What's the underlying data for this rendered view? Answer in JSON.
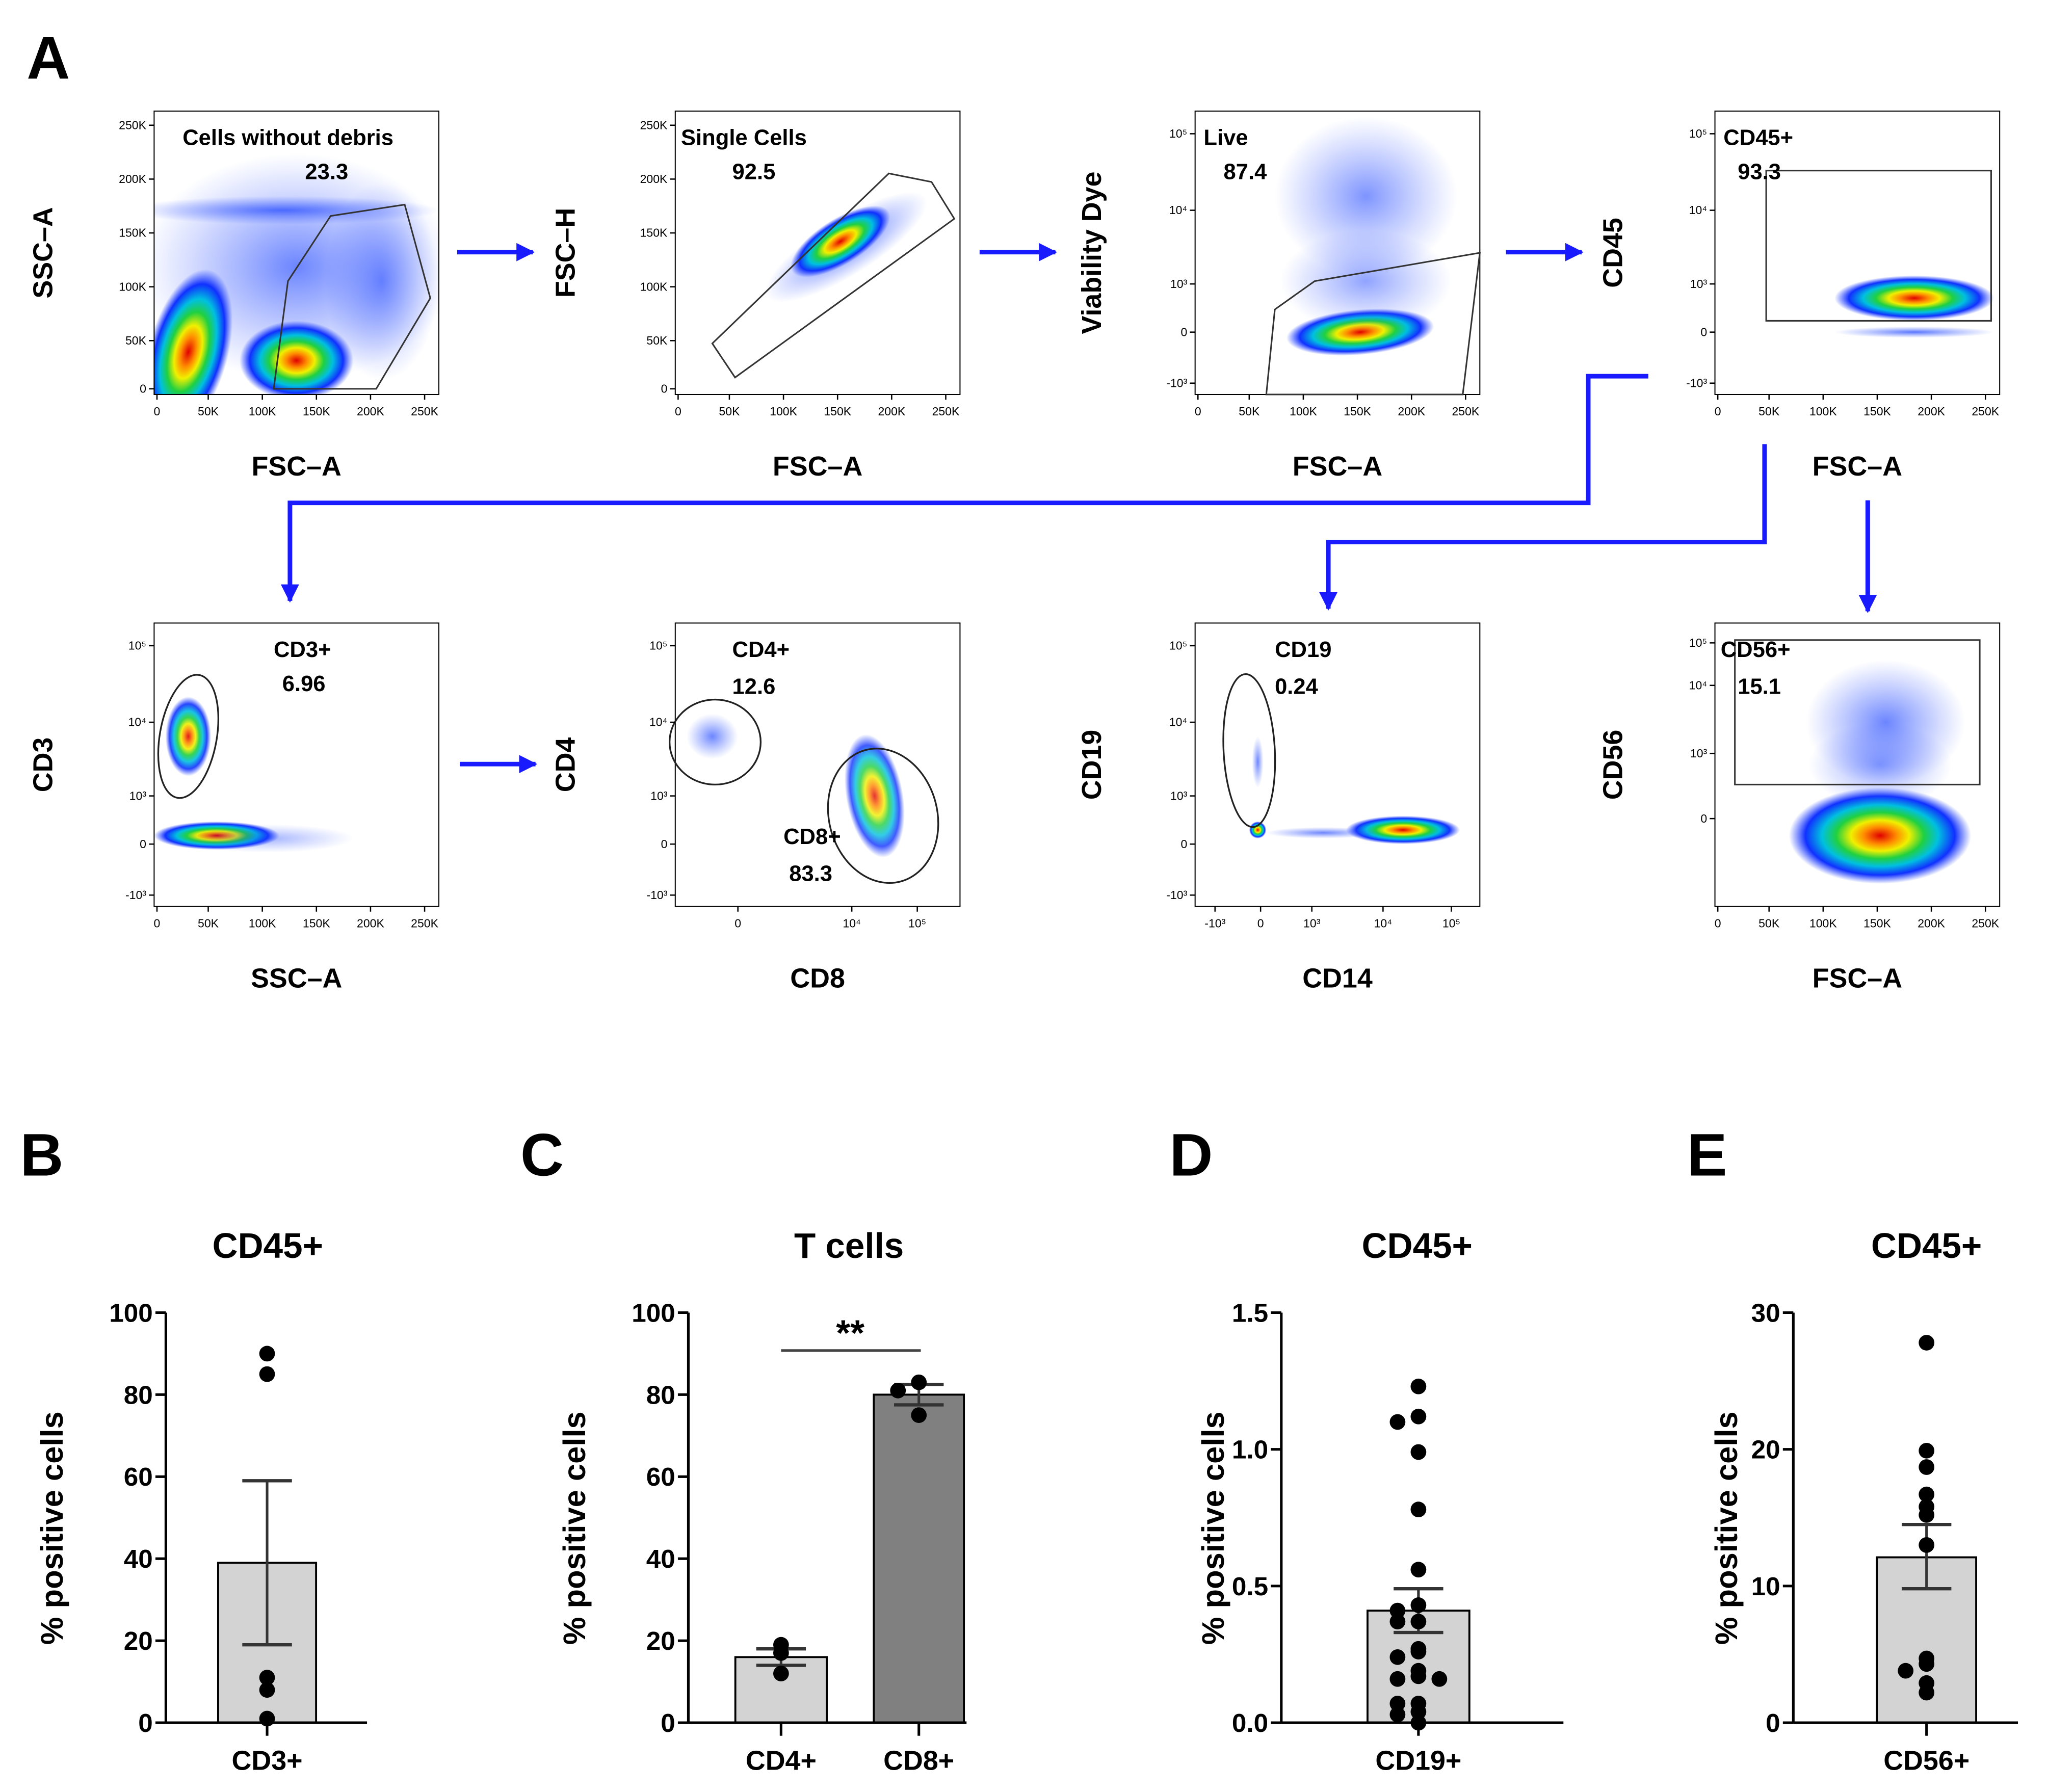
{
  "panel_letters": [
    "A",
    "B",
    "C",
    "D",
    "E"
  ],
  "colors": {
    "arrow": "#1a1aff",
    "bar_light": "#d3d3d3",
    "bar_dark": "#808080"
  },
  "flow_plots": [
    {
      "xlabel": "FSC–A",
      "ylabel": "SSC–A",
      "gate": "Cells without debris",
      "value": "23.3",
      "xticks": [
        "0",
        "50K",
        "100K",
        "150K",
        "200K",
        "250K"
      ],
      "yticks": [
        "250K",
        "200K",
        "150K",
        "100K",
        "50K",
        "0"
      ]
    },
    {
      "xlabel": "FSC–A",
      "ylabel": "FSC–H",
      "gate": "Single Cells",
      "value": "92.5",
      "xticks": [
        "0",
        "50K",
        "100K",
        "150K",
        "200K",
        "250K"
      ],
      "yticks": [
        "250K",
        "200K",
        "150K",
        "100K",
        "50K",
        "0"
      ]
    },
    {
      "xlabel": "FSC–A",
      "ylabel": "Viability Dye",
      "gate": "Live",
      "value": "87.4",
      "xticks": [
        "0",
        "50K",
        "100K",
        "150K",
        "200K",
        "250K"
      ],
      "yticks": [
        "10⁵",
        "10⁴",
        "10³",
        "0",
        "-10³"
      ]
    },
    {
      "xlabel": "FSC–A",
      "ylabel": "CD45",
      "gate": "CD45+",
      "value": "93.3",
      "xticks": [
        "0",
        "50K",
        "100K",
        "150K",
        "200K",
        "250K"
      ],
      "yticks": [
        "10⁵",
        "10⁴",
        "10³",
        "0",
        "-10³"
      ]
    },
    {
      "xlabel": "SSC–A",
      "ylabel": "CD3",
      "gate": "CD3+",
      "value": "6.96",
      "xticks": [
        "0",
        "50K",
        "100K",
        "150K",
        "200K",
        "250K"
      ],
      "yticks": [
        "10⁵",
        "10⁴",
        "10³",
        "0",
        "-10³"
      ]
    },
    {
      "xlabel": "CD8",
      "ylabel": "CD4",
      "gate": "CD4+",
      "value": "12.6",
      "gate2": "CD8+",
      "value2": "83.3",
      "xticks": [
        "0",
        "10⁴",
        "10⁵"
      ],
      "yticks": [
        "10⁵",
        "10⁴",
        "10³",
        "0",
        "-10³"
      ]
    },
    {
      "xlabel": "CD14",
      "ylabel": "CD19",
      "gate": "CD19",
      "value": "0.24",
      "xticks": [
        "-10³",
        "0",
        "10³",
        "10⁴",
        "10⁵"
      ],
      "yticks": [
        "10⁵",
        "10⁴",
        "10³",
        "0",
        "-10³"
      ]
    },
    {
      "xlabel": "FSC–A",
      "ylabel": "CD56",
      "gate": "CD56+",
      "value": "15.1",
      "xticks": [
        "0",
        "50K",
        "100K",
        "150K",
        "200K",
        "250K"
      ],
      "yticks": [
        "10⁵",
        "10⁴",
        "10³",
        "0"
      ]
    }
  ],
  "chart_data": [
    {
      "type": "bar",
      "panel": "B",
      "title": "CD45+",
      "ylabel": "% positive cells",
      "categories": [
        "CD3+"
      ],
      "ylim": [
        0,
        100
      ],
      "yticks": [
        "0",
        "20",
        "40",
        "60",
        "80",
        "100"
      ],
      "series": [
        {
          "name": "CD3+",
          "mean": 39,
          "sem_low": 19,
          "sem_high": 59,
          "points": [
            90,
            85,
            11,
            8,
            1
          ]
        }
      ]
    },
    {
      "type": "bar",
      "panel": "C",
      "title": "T cells",
      "ylabel": "% positive cells",
      "categories": [
        "CD4+",
        "CD8+"
      ],
      "ylim": [
        0,
        100
      ],
      "yticks": [
        "0",
        "20",
        "40",
        "60",
        "80",
        "100"
      ],
      "significance": "**",
      "series": [
        {
          "name": "CD4+",
          "mean": 16,
          "sem_low": 14,
          "sem_high": 18,
          "points": [
            19,
            17,
            12
          ]
        },
        {
          "name": "CD8+",
          "mean": 80,
          "sem_low": 77.5,
          "sem_high": 82.5,
          "points": [
            83,
            81,
            75
          ]
        }
      ]
    },
    {
      "type": "bar",
      "panel": "D",
      "title": "CD45+",
      "ylabel": "% positive cells",
      "categories": [
        "CD19+"
      ],
      "ylim": [
        0,
        1.5
      ],
      "yticks": [
        "0.0",
        "0.5",
        "1.0",
        "1.5"
      ],
      "series": [
        {
          "name": "CD19+",
          "mean": 0.41,
          "sem_low": 0.33,
          "sem_high": 0.49,
          "points": [
            1.23,
            1.12,
            1.1,
            0.99,
            0.78,
            0.56,
            0.43,
            0.41,
            0.37,
            0.37,
            0.27,
            0.26,
            0.24,
            0.19,
            0.17,
            0.16,
            0.16,
            0.07,
            0.07,
            0.04,
            0.03,
            0.0
          ]
        }
      ]
    },
    {
      "type": "bar",
      "panel": "E",
      "title": "CD45+",
      "ylabel": "% positive cells",
      "categories": [
        "CD56+"
      ],
      "ylim": [
        0,
        30
      ],
      "yticks": [
        "0",
        "10",
        "20",
        "30"
      ],
      "series": [
        {
          "name": "CD56+",
          "mean": 12.1,
          "sem_low": 9.8,
          "sem_high": 14.5,
          "points": [
            27.8,
            19.9,
            18.7,
            16.7,
            15.8,
            15.2,
            13.0,
            4.7,
            4.3,
            3.8,
            2.9,
            2.2
          ]
        }
      ]
    }
  ]
}
